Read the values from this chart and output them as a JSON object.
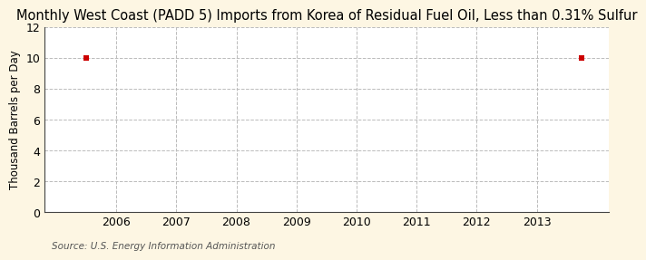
{
  "title": "Monthly West Coast (PADD 5) Imports from Korea of Residual Fuel Oil, Less than 0.31% Sulfur",
  "ylabel": "Thousand Barrels per Day",
  "source": "Source: U.S. Energy Information Administration",
  "figure_bg_color": "#fdf6e3",
  "plot_bg_color": "#ffffff",
  "data_points_x": [
    2005.5,
    2013.75
  ],
  "data_points_y": [
    10,
    10
  ],
  "marker_color": "#cc0000",
  "marker_size": 4,
  "xlim": [
    2004.8,
    2014.2
  ],
  "ylim": [
    0,
    12
  ],
  "yticks": [
    0,
    2,
    4,
    6,
    8,
    10,
    12
  ],
  "xticks": [
    2006,
    2007,
    2008,
    2009,
    2010,
    2011,
    2012,
    2013
  ],
  "grid_color": "#bbbbbb",
  "grid_style": "--",
  "title_fontsize": 10.5,
  "axis_fontsize": 8.5,
  "tick_fontsize": 9,
  "source_fontsize": 7.5,
  "spine_color": "#444444"
}
